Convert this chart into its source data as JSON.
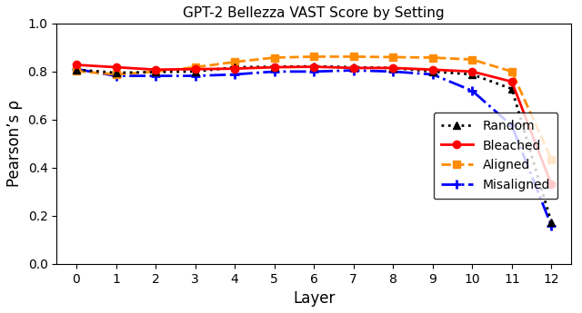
{
  "title": "GPT-2 Bellezza VAST Score by Setting",
  "xlabel": "Layer",
  "ylabel": "Pearson’s ρ",
  "xlim": [
    -0.5,
    12.5
  ],
  "ylim": [
    0,
    1.0
  ],
  "yticks": [
    0,
    0.2,
    0.4,
    0.6,
    0.8,
    1.0
  ],
  "xticks": [
    0,
    1,
    2,
    3,
    4,
    5,
    6,
    7,
    8,
    9,
    10,
    11,
    12
  ],
  "layers": [
    0,
    1,
    2,
    3,
    4,
    5,
    6,
    7,
    8,
    9,
    10,
    11,
    12
  ],
  "random": [
    0.808,
    0.795,
    0.798,
    0.8,
    0.818,
    0.82,
    0.822,
    0.818,
    0.815,
    0.8,
    0.788,
    0.728,
    0.172
  ],
  "bleached": [
    0.828,
    0.818,
    0.808,
    0.81,
    0.812,
    0.818,
    0.82,
    0.815,
    0.815,
    0.808,
    0.8,
    0.758,
    0.33
  ],
  "aligned": [
    0.802,
    0.788,
    0.8,
    0.818,
    0.84,
    0.858,
    0.862,
    0.862,
    0.86,
    0.858,
    0.85,
    0.8,
    0.435
  ],
  "misaligned": [
    0.81,
    0.782,
    0.782,
    0.782,
    0.788,
    0.8,
    0.8,
    0.805,
    0.8,
    0.788,
    0.72,
    0.575,
    0.158
  ],
  "random_color": "#000000",
  "bleached_color": "#ff0000",
  "aligned_color": "#ff8c00",
  "misaligned_color": "#0000ff",
  "background_color": "#ffffff"
}
